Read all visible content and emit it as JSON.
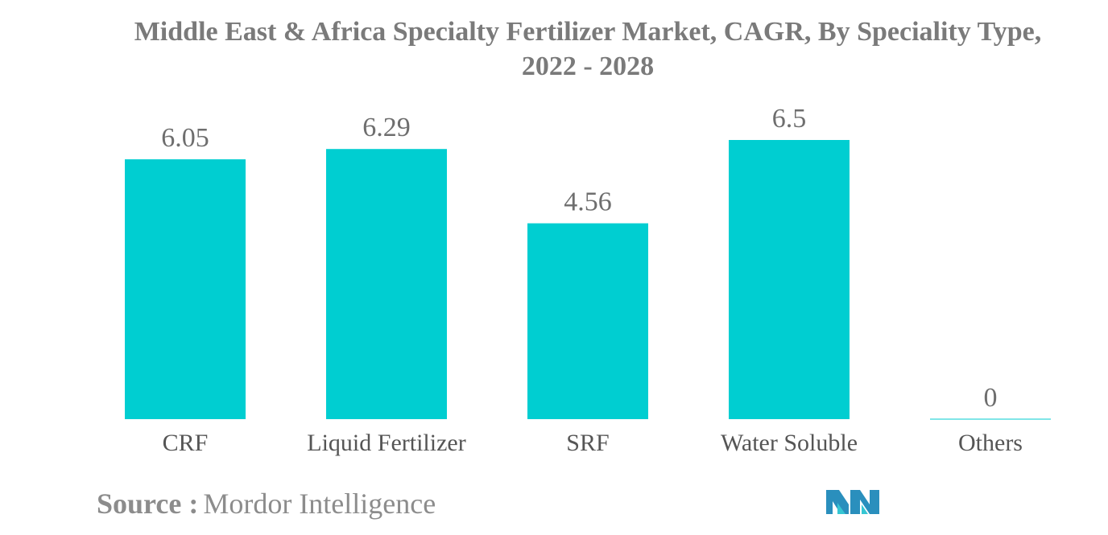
{
  "chart_title": {
    "line1": "Middle East & Africa Specialty Fertilizer Market, CAGR, By Speciality Type,",
    "line2": "2022 - 2028"
  },
  "source": {
    "label": "Source :",
    "value": "Mordor Intelligence"
  },
  "logo": {
    "icon": "mordor-intelligence-logo"
  },
  "colors": {
    "bar": "#00CED1",
    "text": "#7a7a7a"
  },
  "chart_data": {
    "type": "bar",
    "title": "Middle East & Africa Specialty Fertilizer Market, CAGR, By Speciality Type, 2022 - 2028",
    "categories": [
      "CRF",
      "Liquid Fertilizer",
      "SRF",
      "Water Soluble",
      "Others"
    ],
    "values": [
      6.05,
      6.29,
      4.56,
      6.5,
      0
    ],
    "value_labels": [
      "6.05",
      "6.29",
      "4.56",
      "6.5",
      "0"
    ],
    "ylim": [
      0,
      6.5
    ],
    "grid": false,
    "legend": "none"
  }
}
